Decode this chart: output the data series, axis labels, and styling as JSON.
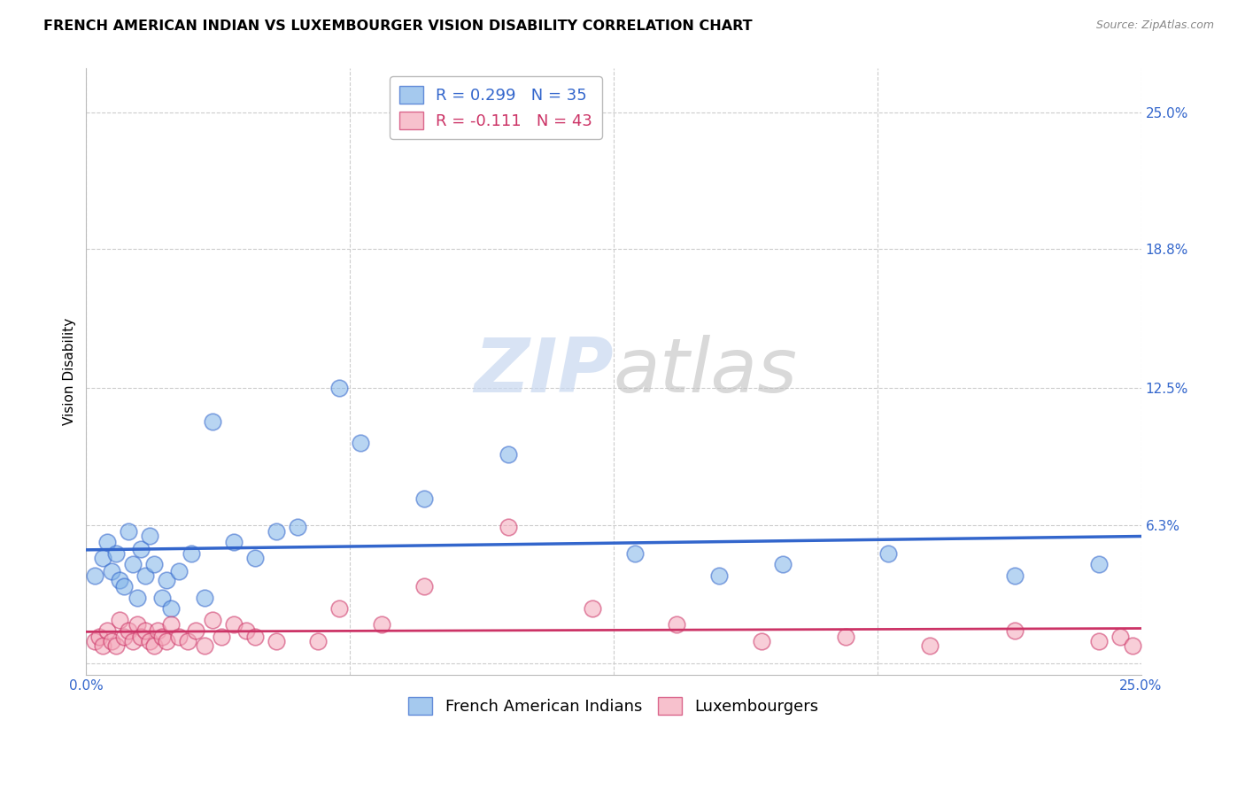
{
  "title": "FRENCH AMERICAN INDIAN VS LUXEMBOURGER VISION DISABILITY CORRELATION CHART",
  "source": "Source: ZipAtlas.com",
  "ylabel": "Vision Disability",
  "xlabel": "",
  "xlim": [
    0.0,
    0.25
  ],
  "ylim": [
    -0.005,
    0.27
  ],
  "yticks": [
    0.0,
    0.063,
    0.125,
    0.188,
    0.25
  ],
  "ytick_labels": [
    "",
    "6.3%",
    "12.5%",
    "18.8%",
    "25.0%"
  ],
  "xtick_labels": [
    "0.0%",
    "",
    "",
    "",
    "25.0%"
  ],
  "xticks": [
    0.0,
    0.0625,
    0.125,
    0.1875,
    0.25
  ],
  "blue_R": 0.299,
  "blue_N": 35,
  "pink_R": -0.111,
  "pink_N": 43,
  "blue_color": "#7FB3E8",
  "pink_color": "#F4A7B9",
  "blue_line_color": "#3366CC",
  "pink_line_color": "#CC3366",
  "blue_scatter_x": [
    0.002,
    0.004,
    0.005,
    0.006,
    0.007,
    0.008,
    0.009,
    0.01,
    0.011,
    0.012,
    0.013,
    0.014,
    0.015,
    0.016,
    0.018,
    0.019,
    0.02,
    0.022,
    0.025,
    0.028,
    0.03,
    0.035,
    0.04,
    0.045,
    0.05,
    0.06,
    0.065,
    0.08,
    0.1,
    0.13,
    0.15,
    0.165,
    0.19,
    0.22,
    0.24
  ],
  "blue_scatter_y": [
    0.04,
    0.048,
    0.055,
    0.042,
    0.05,
    0.038,
    0.035,
    0.06,
    0.045,
    0.03,
    0.052,
    0.04,
    0.058,
    0.045,
    0.03,
    0.038,
    0.025,
    0.042,
    0.05,
    0.03,
    0.11,
    0.055,
    0.048,
    0.06,
    0.062,
    0.125,
    0.1,
    0.075,
    0.095,
    0.05,
    0.04,
    0.045,
    0.05,
    0.04,
    0.045
  ],
  "pink_scatter_x": [
    0.002,
    0.003,
    0.004,
    0.005,
    0.006,
    0.007,
    0.008,
    0.009,
    0.01,
    0.011,
    0.012,
    0.013,
    0.014,
    0.015,
    0.016,
    0.017,
    0.018,
    0.019,
    0.02,
    0.022,
    0.024,
    0.026,
    0.028,
    0.03,
    0.032,
    0.035,
    0.038,
    0.04,
    0.045,
    0.055,
    0.06,
    0.07,
    0.08,
    0.1,
    0.12,
    0.14,
    0.16,
    0.18,
    0.2,
    0.22,
    0.24,
    0.245,
    0.248
  ],
  "pink_scatter_y": [
    0.01,
    0.012,
    0.008,
    0.015,
    0.01,
    0.008,
    0.02,
    0.012,
    0.015,
    0.01,
    0.018,
    0.012,
    0.015,
    0.01,
    0.008,
    0.015,
    0.012,
    0.01,
    0.018,
    0.012,
    0.01,
    0.015,
    0.008,
    0.02,
    0.012,
    0.018,
    0.015,
    0.012,
    0.01,
    0.01,
    0.025,
    0.018,
    0.035,
    0.062,
    0.025,
    0.018,
    0.01,
    0.012,
    0.008,
    0.015,
    0.01,
    0.012,
    0.008
  ],
  "watermark_text": "ZIPatlas",
  "legend_fontsize": 13,
  "title_fontsize": 11.5,
  "axis_label_fontsize": 11,
  "tick_fontsize": 11,
  "grid_color": "#CCCCCC",
  "background_color": "#FFFFFF"
}
